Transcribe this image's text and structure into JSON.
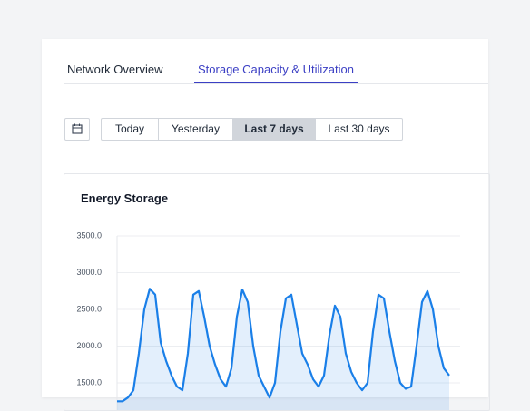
{
  "tabs": [
    "Network Overview",
    "Storage Capacity & Utilization"
  ],
  "ranges": [
    "Today",
    "Yesterday",
    "Last 7 days",
    "Last 30 days"
  ],
  "chart_data": {
    "type": "line",
    "title": "Energy Storage",
    "ylim": [
      1000,
      3500
    ],
    "yticks": [
      {
        "value": 1500,
        "label": "1500.0"
      },
      {
        "value": 2000,
        "label": "2000.0"
      },
      {
        "value": 2500,
        "label": "2500.0"
      },
      {
        "value": 3000,
        "label": "3000.0"
      },
      {
        "value": 3500,
        "label": "3500.0"
      }
    ],
    "grid": true,
    "color": "#1a7fe8",
    "values": [
      1250,
      1250,
      1300,
      1400,
      1900,
      2500,
      2780,
      2700,
      2050,
      1800,
      1600,
      1450,
      1400,
      1900,
      2700,
      2750,
      2400,
      2000,
      1750,
      1550,
      1450,
      1700,
      2400,
      2770,
      2600,
      2000,
      1600,
      1450,
      1300,
      1500,
      2200,
      2650,
      2700,
      2300,
      1900,
      1750,
      1550,
      1450,
      1600,
      2150,
      2550,
      2400,
      1900,
      1650,
      1500,
      1400,
      1500,
      2200,
      2700,
      2650,
      2200,
      1800,
      1500,
      1420,
      1450,
      2000,
      2600,
      2750,
      2500,
      2000,
      1700,
      1600
    ]
  }
}
